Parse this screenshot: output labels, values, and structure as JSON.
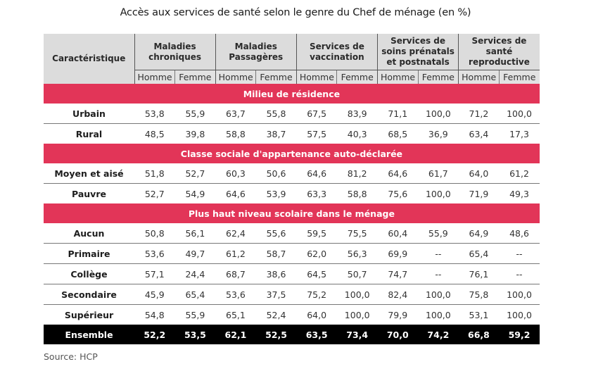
{
  "title": "Accès aux services de santé selon le genre du Chef de ménage (en %)",
  "header": {
    "first_col": "Caractéristique",
    "groups": [
      "Maladies chroniques",
      "Maladies Passagères",
      "Services de vaccination",
      "Services de soins prénatals et postnatals",
      "Services de santé reproductive"
    ],
    "sub": [
      "Homme",
      "Femme"
    ]
  },
  "sections": [
    {
      "title": "Milieu de résidence",
      "rows": [
        {
          "label": "Urbain",
          "values": [
            "53,8",
            "55,9",
            "63,7",
            "55,8",
            "67,5",
            "83,9",
            "71,1",
            "100,0",
            "71,2",
            "100,0"
          ]
        },
        {
          "label": "Rural",
          "values": [
            "48,5",
            "39,8",
            "58,8",
            "38,7",
            "57,5",
            "40,3",
            "68,5",
            "36,9",
            "63,4",
            "17,3"
          ]
        }
      ]
    },
    {
      "title": "Classe sociale d'appartenance auto-déclarée",
      "rows": [
        {
          "label": "Moyen et aisé",
          "values": [
            "51,8",
            "52,7",
            "60,3",
            "50,6",
            "64,6",
            "81,2",
            "64,6",
            "61,7",
            "64,0",
            "61,2"
          ]
        },
        {
          "label": "Pauvre",
          "values": [
            "52,7",
            "54,9",
            "64,6",
            "53,9",
            "63,3",
            "58,8",
            "75,6",
            "100,0",
            "71,9",
            "49,3"
          ]
        }
      ]
    },
    {
      "title": "Plus haut niveau scolaire dans le ménage",
      "rows": [
        {
          "label": "Aucun",
          "values": [
            "50,8",
            "56,1",
            "62,4",
            "55,6",
            "59,5",
            "75,5",
            "60,4",
            "55,9",
            "64,9",
            "48,6"
          ]
        },
        {
          "label": "Primaire",
          "values": [
            "53,6",
            "49,7",
            "61,2",
            "58,7",
            "62,0",
            "56,3",
            "69,9",
            "--",
            "65,4",
            "--"
          ]
        },
        {
          "label": "Collège",
          "values": [
            "57,1",
            "24,4",
            "68,7",
            "38,6",
            "64,5",
            "50,7",
            "74,7",
            "--",
            "76,1",
            "--"
          ]
        },
        {
          "label": "Secondaire",
          "values": [
            "45,9",
            "65,4",
            "53,6",
            "37,5",
            "75,2",
            "100,0",
            "82,4",
            "100,0",
            "75,8",
            "100,0"
          ]
        },
        {
          "label": "Supérieur",
          "values": [
            "54,8",
            "55,9",
            "65,1",
            "52,4",
            "64,0",
            "100,0",
            "79,9",
            "100,0",
            "53,1",
            "100,0"
          ]
        }
      ]
    }
  ],
  "total": {
    "label": "Ensemble",
    "values": [
      "52,2",
      "53,5",
      "62,1",
      "52,5",
      "63,5",
      "73,4",
      "70,0",
      "74,2",
      "66,8",
      "59,2"
    ]
  },
  "source": "Source: HCP",
  "colors": {
    "section_band": "#e23558",
    "header_bg": "#dcdcdc",
    "total_bg": "#000000"
  }
}
